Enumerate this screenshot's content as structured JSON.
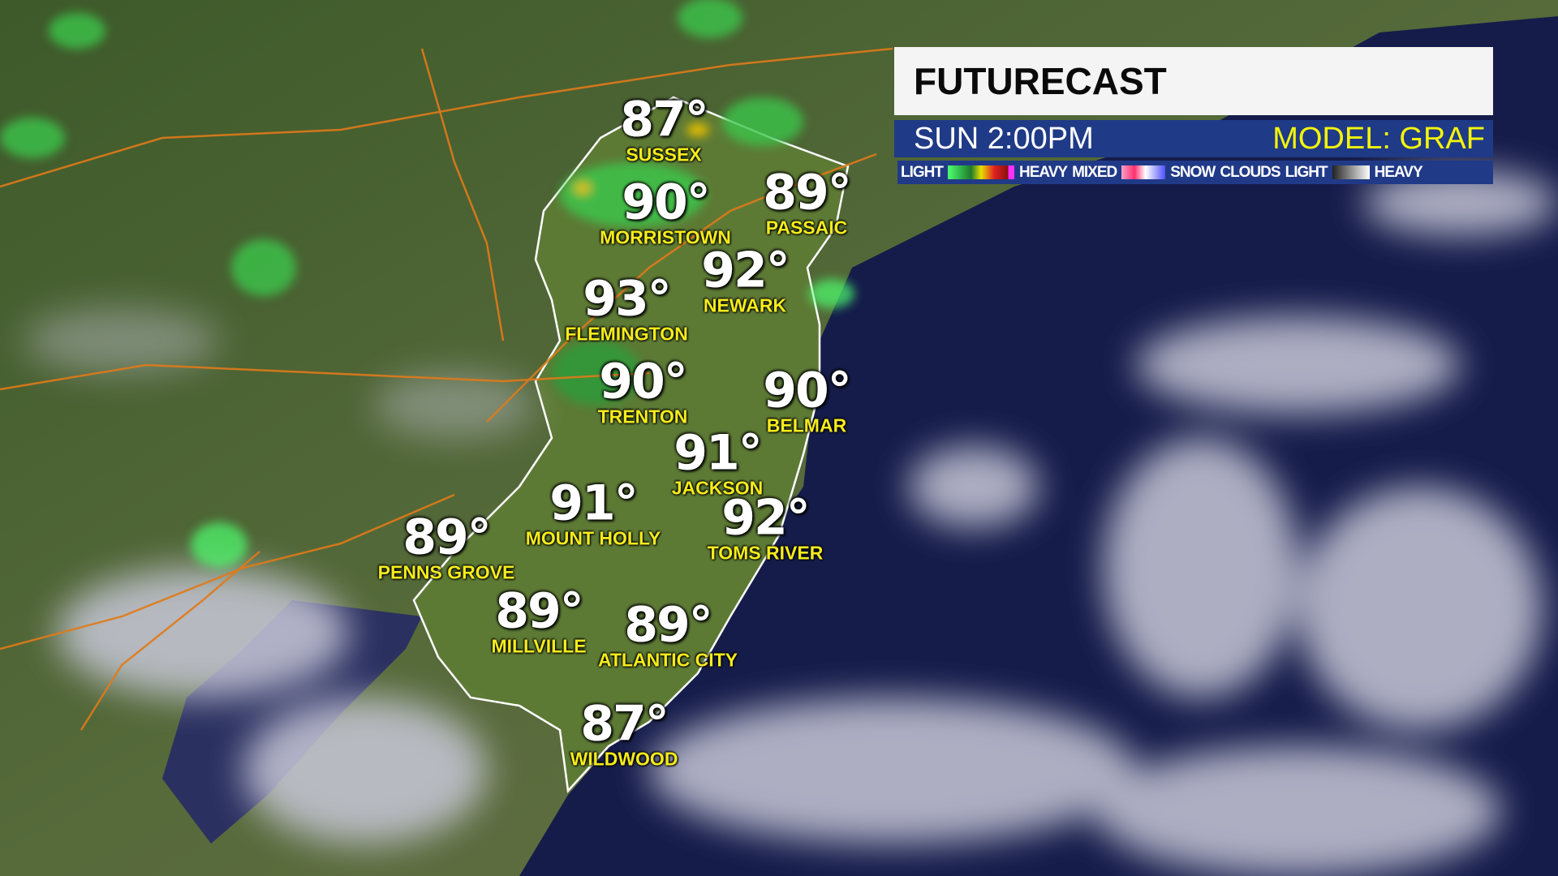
{
  "header": {
    "title": "FUTURECAST",
    "time": "SUN  2:00PM",
    "model": "MODEL: GRAF"
  },
  "legend": {
    "rain_light": "LIGHT",
    "rain_heavy": "HEAVY",
    "mixed": "MIXED",
    "snow": "SNOW",
    "clouds": "CLOUDS",
    "clouds_light": "LIGHT",
    "clouds_heavy": "HEAVY",
    "colors": {
      "rain": [
        "#4dff6e",
        "#1e7a2e",
        "#e8e000",
        "#e02020",
        "#8a1010",
        "#ff30ff"
      ],
      "mixed": [
        "#f7a0c8",
        "#ff3070",
        "#ffffff",
        "#5050ff"
      ],
      "clouds": [
        "#222222",
        "#ffffff"
      ]
    }
  },
  "cities": [
    {
      "temp": "87°",
      "name": "SUSSEX"
    },
    {
      "temp": "90°",
      "name": "MORRISTOWN"
    },
    {
      "temp": "89°",
      "name": "PASSAIC"
    },
    {
      "temp": "92°",
      "name": "NEWARK"
    },
    {
      "temp": "93°",
      "name": "FLEMINGTON"
    },
    {
      "temp": "90°",
      "name": "TRENTON"
    },
    {
      "temp": "90°",
      "name": "BELMAR"
    },
    {
      "temp": "91°",
      "name": "JACKSON"
    },
    {
      "temp": "91°",
      "name": "MOUNT HOLLY"
    },
    {
      "temp": "92°",
      "name": "TOMS RIVER"
    },
    {
      "temp": "89°",
      "name": "PENNS GROVE"
    },
    {
      "temp": "89°",
      "name": "MILLVILLE"
    },
    {
      "temp": "89°",
      "name": "ATLANTIC CITY"
    },
    {
      "temp": "87°",
      "name": "WILDWOOD"
    }
  ]
}
